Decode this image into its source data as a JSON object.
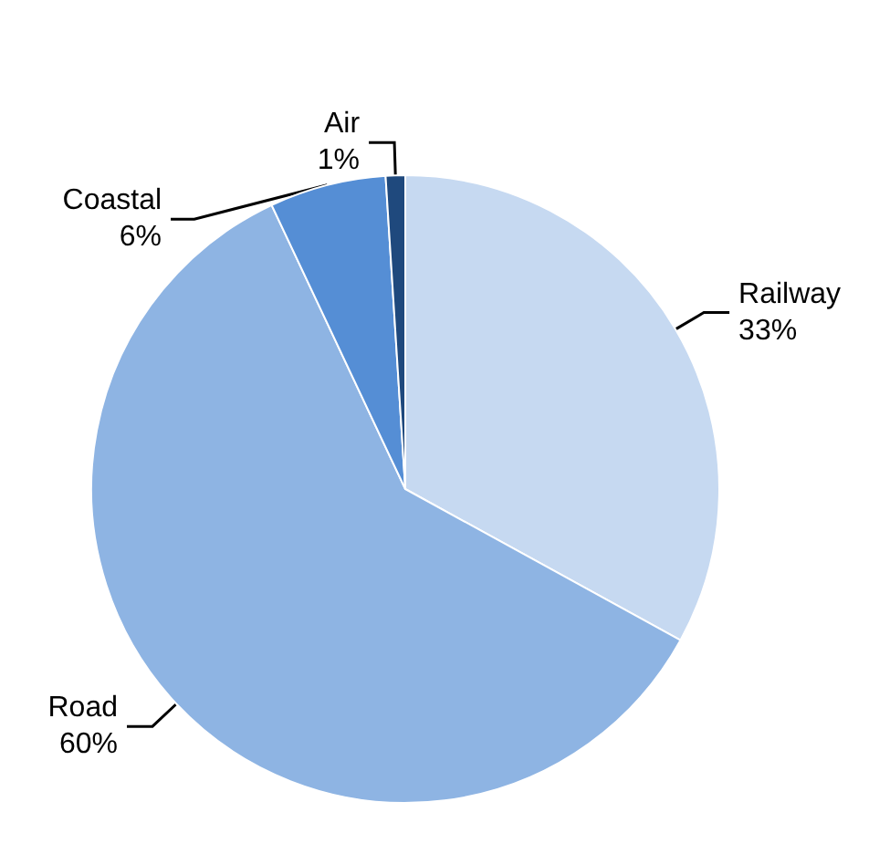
{
  "chart_data": {
    "type": "pie",
    "categories": [
      "Railway",
      "Road",
      "Coastal",
      "Air"
    ],
    "values": [
      33,
      60,
      6,
      1
    ],
    "colors": [
      "#c6d9f1",
      "#8eb4e3",
      "#558ed5",
      "#1f497d"
    ],
    "value_labels": [
      "33%",
      "60%",
      "6%",
      "1%"
    ],
    "legend": false
  }
}
